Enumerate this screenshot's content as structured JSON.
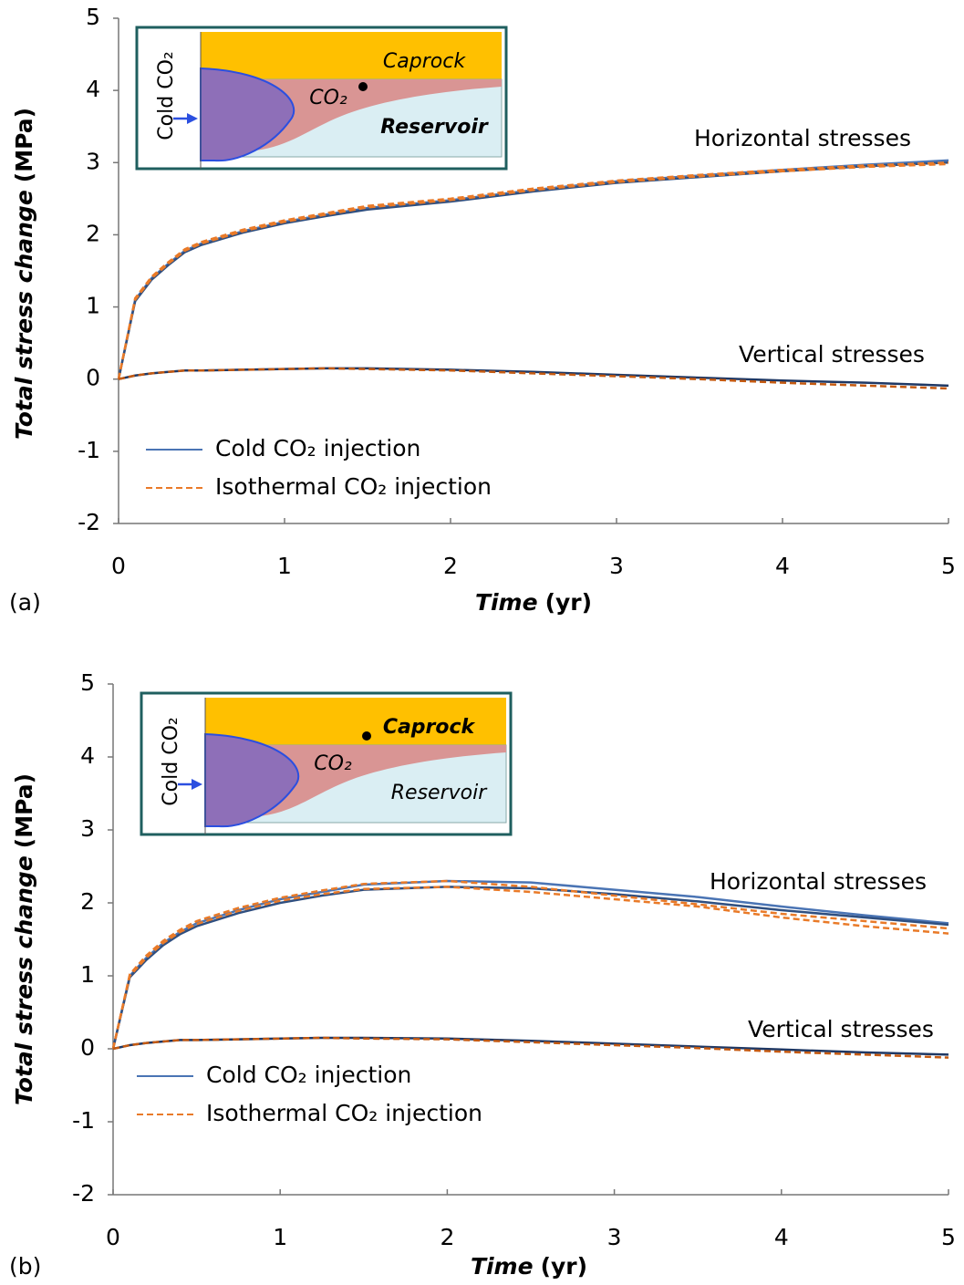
{
  "chart_data": [
    {
      "type": "line",
      "panel_label": "(a)",
      "xlabel": "Time",
      "xlabel_unit": "(yr)",
      "ylabel": "Total stress change",
      "ylabel_unit": "(MPa)",
      "annotations": [
        "Horizontal stresses",
        "Vertical stresses"
      ],
      "inset": {
        "side_label": "Cold CO₂",
        "labels": [
          "Caprock",
          "CO₂",
          "Reservoir"
        ]
      },
      "x": [
        0,
        0.1,
        0.2,
        0.3,
        0.4,
        0.5,
        0.75,
        1,
        1.25,
        1.5,
        2,
        2.5,
        3,
        3.5,
        4,
        4.5,
        5
      ],
      "xlim": [
        0,
        5
      ],
      "xticks": [
        0,
        1,
        2,
        3,
        4,
        5
      ],
      "ylim": [
        -2,
        5
      ],
      "yticks": [
        -2,
        -1,
        0,
        1,
        2,
        3,
        4,
        5
      ],
      "series": [
        {
          "name": "Cold CO₂ injection",
          "color": "#4a74b4",
          "dash": false,
          "values": [
            0,
            1.1,
            1.4,
            1.6,
            1.78,
            1.88,
            2.05,
            2.18,
            2.28,
            2.37,
            2.48,
            2.62,
            2.74,
            2.82,
            2.9,
            2.97,
            3.03
          ]
        },
        {
          "name": "Cold CO₂ injection",
          "color": "#2f4f80",
          "dash": false,
          "values": [
            0,
            1.08,
            1.38,
            1.58,
            1.76,
            1.86,
            2.03,
            2.16,
            2.26,
            2.35,
            2.46,
            2.6,
            2.72,
            2.8,
            2.88,
            2.95,
            3.0
          ]
        },
        {
          "name": "Isothermal CO₂ injection",
          "color": "#e97a28",
          "dash": true,
          "values": [
            0,
            1.12,
            1.42,
            1.62,
            1.8,
            1.9,
            2.07,
            2.2,
            2.3,
            2.4,
            2.5,
            2.64,
            2.75,
            2.83,
            2.9,
            2.96,
            3.0
          ]
        },
        {
          "name": "Isothermal CO₂ injection",
          "color": "#e97a28",
          "dash": true,
          "values": [
            0,
            1.1,
            1.4,
            1.6,
            1.78,
            1.88,
            2.05,
            2.18,
            2.28,
            2.38,
            2.48,
            2.62,
            2.73,
            2.81,
            2.88,
            2.94,
            2.98
          ]
        },
        {
          "name": "Cold CO₂ injection",
          "color": "#1f3864",
          "dash": false,
          "values": [
            0,
            0.05,
            0.08,
            0.1,
            0.12,
            0.12,
            0.13,
            0.14,
            0.15,
            0.15,
            0.13,
            0.1,
            0.06,
            0.02,
            -0.02,
            -0.05,
            -0.09
          ]
        },
        {
          "name": "Isothermal CO₂ injection",
          "color": "#c55a11",
          "dash": true,
          "values": [
            0,
            0.05,
            0.08,
            0.1,
            0.12,
            0.12,
            0.13,
            0.14,
            0.15,
            0.14,
            0.12,
            0.08,
            0.04,
            0,
            -0.05,
            -0.09,
            -0.13
          ]
        }
      ]
    },
    {
      "type": "line",
      "panel_label": "(b)",
      "xlabel": "Time",
      "xlabel_unit": "(yr)",
      "ylabel": "Total stress change",
      "ylabel_unit": "(MPa)",
      "annotations": [
        "Horizontal stresses",
        "Vertical stresses"
      ],
      "inset": {
        "side_label": "Cold CO₂",
        "labels": [
          "Caprock",
          "CO₂",
          "Reservoir"
        ]
      },
      "x": [
        0,
        0.1,
        0.2,
        0.3,
        0.4,
        0.5,
        0.75,
        1,
        1.25,
        1.5,
        2,
        2.5,
        3,
        3.5,
        4,
        4.5,
        5
      ],
      "xlim": [
        0,
        5
      ],
      "xticks": [
        0,
        1,
        2,
        3,
        4,
        5
      ],
      "ylim": [
        -2,
        5
      ],
      "yticks": [
        -2,
        -1,
        0,
        1,
        2,
        3,
        4,
        5
      ],
      "series": [
        {
          "name": "Cold CO₂ injection",
          "color": "#4a74b4",
          "dash": false,
          "values": [
            0,
            1.0,
            1.25,
            1.45,
            1.6,
            1.72,
            1.9,
            2.05,
            2.15,
            2.25,
            2.3,
            2.28,
            2.18,
            2.08,
            1.95,
            1.83,
            1.72
          ]
        },
        {
          "name": "Cold CO₂ injection",
          "color": "#2f4f80",
          "dash": false,
          "values": [
            0,
            0.98,
            1.22,
            1.42,
            1.57,
            1.68,
            1.86,
            2.0,
            2.1,
            2.18,
            2.22,
            2.2,
            2.12,
            2.02,
            1.9,
            1.8,
            1.7
          ]
        },
        {
          "name": "Isothermal CO₂ injection",
          "color": "#e97a28",
          "dash": true,
          "values": [
            0,
            1.02,
            1.28,
            1.48,
            1.63,
            1.75,
            1.93,
            2.07,
            2.17,
            2.26,
            2.3,
            2.22,
            2.1,
            1.98,
            1.85,
            1.75,
            1.65
          ]
        },
        {
          "name": "Isothermal CO₂ injection",
          "color": "#e97a28",
          "dash": true,
          "values": [
            0,
            1.0,
            1.25,
            1.45,
            1.6,
            1.71,
            1.89,
            2.03,
            2.12,
            2.19,
            2.22,
            2.15,
            2.05,
            1.95,
            1.8,
            1.68,
            1.58
          ]
        },
        {
          "name": "Cold CO₂ injection",
          "color": "#1f3864",
          "dash": false,
          "values": [
            0,
            0.05,
            0.08,
            0.1,
            0.12,
            0.12,
            0.13,
            0.14,
            0.15,
            0.15,
            0.14,
            0.11,
            0.07,
            0.03,
            -0.01,
            -0.05,
            -0.08
          ]
        },
        {
          "name": "Isothermal CO₂ injection",
          "color": "#c55a11",
          "dash": true,
          "values": [
            0,
            0.05,
            0.08,
            0.1,
            0.12,
            0.12,
            0.13,
            0.14,
            0.15,
            0.14,
            0.13,
            0.09,
            0.05,
            0.01,
            -0.04,
            -0.08,
            -0.12
          ]
        }
      ]
    }
  ]
}
